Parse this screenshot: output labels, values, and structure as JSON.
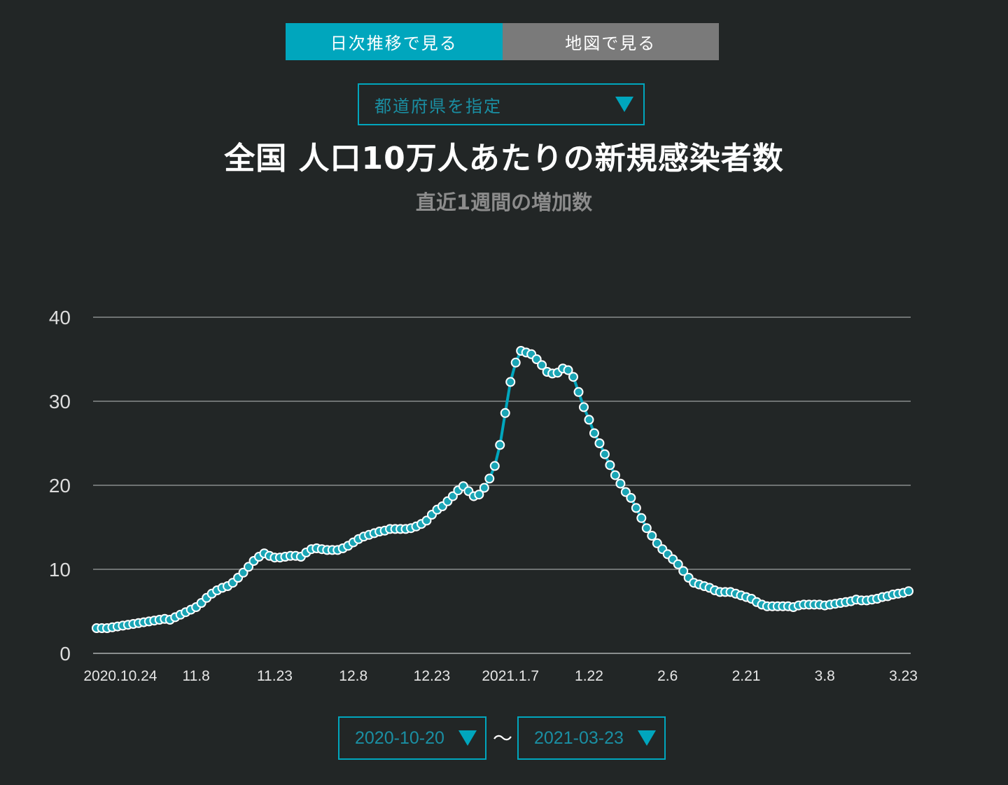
{
  "tabs": [
    {
      "label": "日次推移で見る",
      "active": true
    },
    {
      "label": "地図で見る",
      "active": false
    }
  ],
  "prefecture_select": {
    "label": "都道府県を指定"
  },
  "title": "全国 人口10万人あたりの新規感染者数",
  "subtitle": "直近1週間の増加数",
  "date_range": {
    "start": "2020-10-20",
    "separator": "〜",
    "end": "2021-03-23"
  },
  "colors": {
    "accent": "#00a6bd",
    "background": "#222626",
    "grid": "#6f7373",
    "point_fill": "#1aa5b5",
    "point_stroke": "#ffffff"
  },
  "chart_data": {
    "type": "line",
    "title": "全国 人口10万人あたりの新規感染者数",
    "subtitle": "直近1週間の増加数",
    "ylim": [
      0,
      40
    ],
    "yticks": [
      0,
      10,
      20,
      30,
      40
    ],
    "xtick_labels": [
      "2020.10.24",
      "11.8",
      "11.23",
      "12.8",
      "12.23",
      "2021.1.7",
      "1.22",
      "2.6",
      "2.21",
      "3.8",
      "3.23"
    ],
    "grid": true,
    "start_date": "2020-10-20",
    "end_date": "2021-03-23",
    "values": [
      3.0,
      3.0,
      3.0,
      3.1,
      3.2,
      3.3,
      3.4,
      3.5,
      3.6,
      3.7,
      3.8,
      3.9,
      4.0,
      4.1,
      4.0,
      4.3,
      4.6,
      4.9,
      5.2,
      5.5,
      6.0,
      6.6,
      7.1,
      7.5,
      7.8,
      8.0,
      8.4,
      9.0,
      9.6,
      10.3,
      11.0,
      11.5,
      11.9,
      11.6,
      11.4,
      11.4,
      11.5,
      11.6,
      11.6,
      11.5,
      12.0,
      12.4,
      12.5,
      12.4,
      12.3,
      12.3,
      12.3,
      12.5,
      12.8,
      13.2,
      13.6,
      13.9,
      14.1,
      14.3,
      14.5,
      14.6,
      14.8,
      14.8,
      14.8,
      14.8,
      14.9,
      15.1,
      15.4,
      15.8,
      16.5,
      17.1,
      17.5,
      18.1,
      18.7,
      19.4,
      19.9,
      19.3,
      18.7,
      18.9,
      19.7,
      20.8,
      22.3,
      24.8,
      28.6,
      32.3,
      34.6,
      36.0,
      35.8,
      35.6,
      35.0,
      34.3,
      33.5,
      33.3,
      33.4,
      33.9,
      33.7,
      32.9,
      31.1,
      29.3,
      27.8,
      26.2,
      25.0,
      23.7,
      22.4,
      21.2,
      20.2,
      19.2,
      18.5,
      17.3,
      16.1,
      14.9,
      14.0,
      13.1,
      12.4,
      11.8,
      11.2,
      10.6,
      9.8,
      9.0,
      8.4,
      8.2,
      8.0,
      7.8,
      7.5,
      7.3,
      7.3,
      7.3,
      7.1,
      6.9,
      6.7,
      6.5,
      6.1,
      5.8,
      5.6,
      5.6,
      5.6,
      5.6,
      5.6,
      5.5,
      5.7,
      5.8,
      5.8,
      5.8,
      5.8,
      5.7,
      5.8,
      5.9,
      6.0,
      6.1,
      6.2,
      6.4,
      6.3,
      6.3,
      6.4,
      6.5,
      6.7,
      6.8,
      7.0,
      7.1,
      7.2,
      7.4
    ]
  }
}
